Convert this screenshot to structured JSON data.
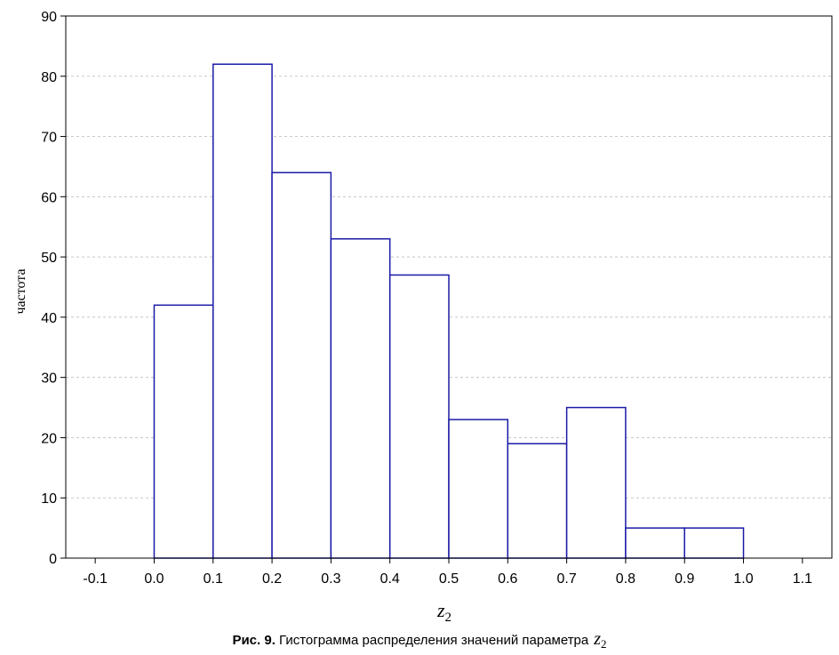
{
  "chart_data": {
    "type": "bar",
    "chart_subtype": "histogram",
    "bins": [
      {
        "from": 0.0,
        "to": 0.1,
        "value": 42
      },
      {
        "from": 0.1,
        "to": 0.2,
        "value": 82
      },
      {
        "from": 0.2,
        "to": 0.3,
        "value": 64
      },
      {
        "from": 0.3,
        "to": 0.4,
        "value": 53
      },
      {
        "from": 0.4,
        "to": 0.5,
        "value": 47
      },
      {
        "from": 0.5,
        "to": 0.6,
        "value": 23
      },
      {
        "from": 0.6,
        "to": 0.7,
        "value": 19
      },
      {
        "from": 0.7,
        "to": 0.8,
        "value": 25
      },
      {
        "from": 0.8,
        "to": 0.9,
        "value": 5
      },
      {
        "from": 0.9,
        "to": 1.0,
        "value": 5
      }
    ],
    "xlim": [
      -0.15,
      1.15
    ],
    "ylim": [
      0,
      90
    ],
    "x_ticks": [
      "-0.1",
      "0.0",
      "0.1",
      "0.2",
      "0.3",
      "0.4",
      "0.5",
      "0.6",
      "0.7",
      "0.8",
      "0.9",
      "1.0",
      "1.1"
    ],
    "y_ticks": [
      "0",
      "10",
      "20",
      "30",
      "40",
      "50",
      "60",
      "70",
      "80",
      "90"
    ],
    "xlabel": {
      "main": "z",
      "sub": "2"
    },
    "ylabel": "частота",
    "grid": "horizontal dashed",
    "colors": {
      "bars": "#1a1aa6",
      "grid": "#c8c8c8",
      "axes": "#000000"
    }
  },
  "caption": {
    "prefix": "Рис. 9.",
    "text": " Гистограмма распределения значений параметра",
    "var": "z",
    "sub": "2"
  }
}
